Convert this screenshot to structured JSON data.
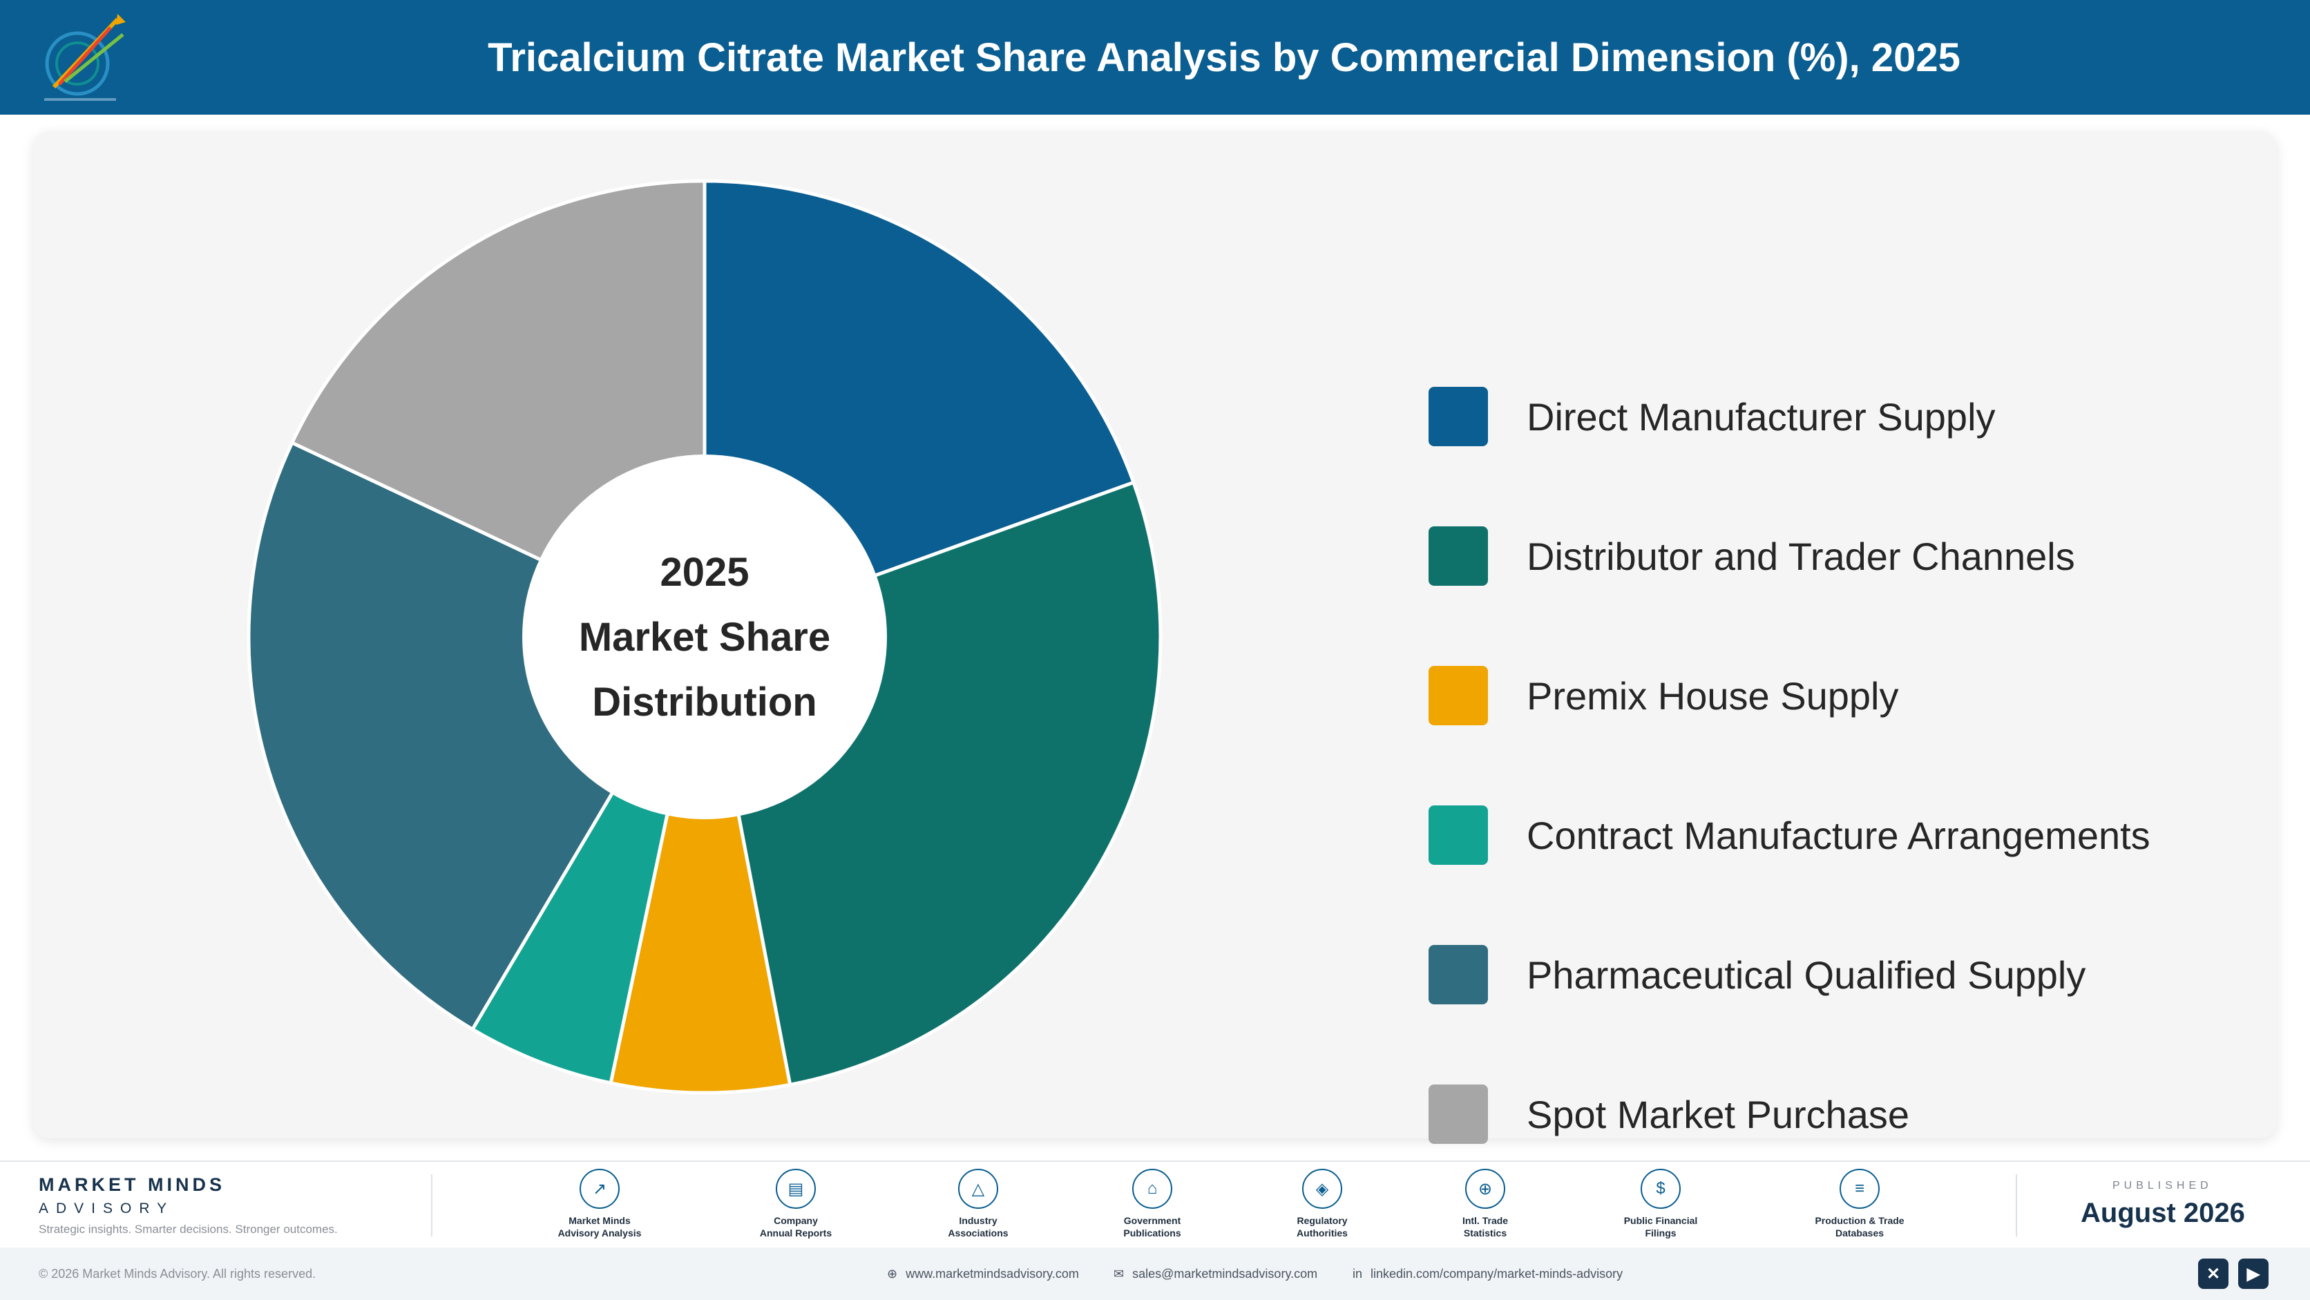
{
  "header": {
    "title": "Tricalcium Citrate Market Share Analysis by Commercial Dimension (%), 2025"
  },
  "chart_data": {
    "type": "pie",
    "variant": "donut",
    "center_text": [
      "2025",
      "Market Share",
      "Distribution"
    ],
    "categories": [
      "Direct Manufacturer Supply",
      "Distributor and Trader Channels",
      "Premix House Supply",
      "Contract Manufacture Arrangements",
      "Pharmaceutical Qualified Supply",
      "Spot Market Purchase"
    ],
    "values": [
      19.5,
      27.5,
      6.3,
      5.2,
      23.5,
      18.0
    ],
    "colors": [
      "#0a5e91",
      "#0e726b",
      "#f0a500",
      "#13a393",
      "#306d80",
      "#a6a6a6"
    ],
    "legend_position": "right"
  },
  "footer": {
    "brand_name": "MARKET MINDS",
    "brand_sub": "ADVISORY",
    "tagline": "Strategic insights. Smarter decisions. Stronger outcomes.",
    "sources": [
      {
        "label": "Market Minds\nAdvisory Analysis",
        "icon": "chart-line-icon"
      },
      {
        "label": "Company\nAnnual Reports",
        "icon": "document-icon"
      },
      {
        "label": "Industry\nAssociations",
        "icon": "network-icon"
      },
      {
        "label": "Government\nPublications",
        "icon": "building-icon"
      },
      {
        "label": "Regulatory\nAuthorities",
        "icon": "shield-icon"
      },
      {
        "label": "Intl. Trade\nStatistics",
        "icon": "globe-icon"
      },
      {
        "label": "Public Financial\nFilings",
        "icon": "dollar-icon"
      },
      {
        "label": "Production & Trade\nDatabases",
        "icon": "database-icon"
      }
    ],
    "published_label": "PUBLISHED",
    "published_date": "August 2026"
  },
  "bottom_bar": {
    "copyright": "© 2026 Market Minds Advisory. All rights reserved.",
    "website": "www.marketmindsadvisory.com",
    "email": "sales@marketmindsadvisory.com",
    "linkedin": "linkedin.com/company/market-minds-advisory"
  }
}
